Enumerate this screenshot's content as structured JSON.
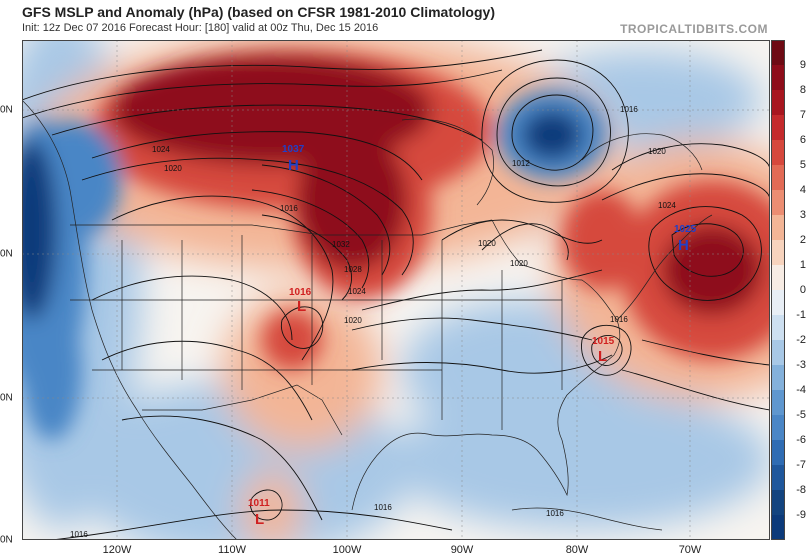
{
  "header": {
    "title": "GFS MSLP and Anomaly (hPa) (based on CFSR 1981-2010 Climatology)",
    "subtitle": "Init: 12z Dec 07 2016   Forecast Hour: [180]   valid at 00z Thu, Dec 15 2016",
    "brand": "TROPICALTIDBITS.COM"
  },
  "colors": {
    "positive_strong": "#8e0d1a",
    "positive_mid": "#d6483d",
    "positive_light": "#f3b596",
    "neutral": "#f7f4f0",
    "negative_light": "#a8c8e6",
    "negative_mid": "#4a86c6",
    "negative_strong": "#0c3a7a",
    "high_label": "#2040c8",
    "low_label": "#d02020"
  },
  "colorbar": {
    "ticks": [
      "9",
      "8",
      "7",
      "6",
      "5",
      "4",
      "3",
      "2",
      "1",
      "0",
      "-1",
      "-2",
      "-3",
      "-4",
      "-5",
      "-6",
      "-7",
      "-8",
      "-9"
    ]
  },
  "axes": {
    "lat_labels": [
      "0N",
      "0N",
      "0N",
      "0N"
    ],
    "lon_labels": [
      "120W",
      "110W",
      "100W",
      "90W",
      "80W",
      "70W"
    ]
  },
  "pressure_centers": [
    {
      "type": "H",
      "value": "1037"
    },
    {
      "type": "H",
      "value": "1025"
    },
    {
      "type": "L",
      "value": "1016"
    },
    {
      "type": "L",
      "value": "1015"
    },
    {
      "type": "L",
      "value": "1011"
    }
  ],
  "isobar_labels": [
    "1024",
    "1020",
    "1016",
    "1028",
    "1032",
    "1024",
    "1020",
    "1016",
    "1020",
    "1012",
    "1016",
    "1020",
    "1024",
    "1020",
    "1016",
    "1016",
    "1016"
  ]
}
